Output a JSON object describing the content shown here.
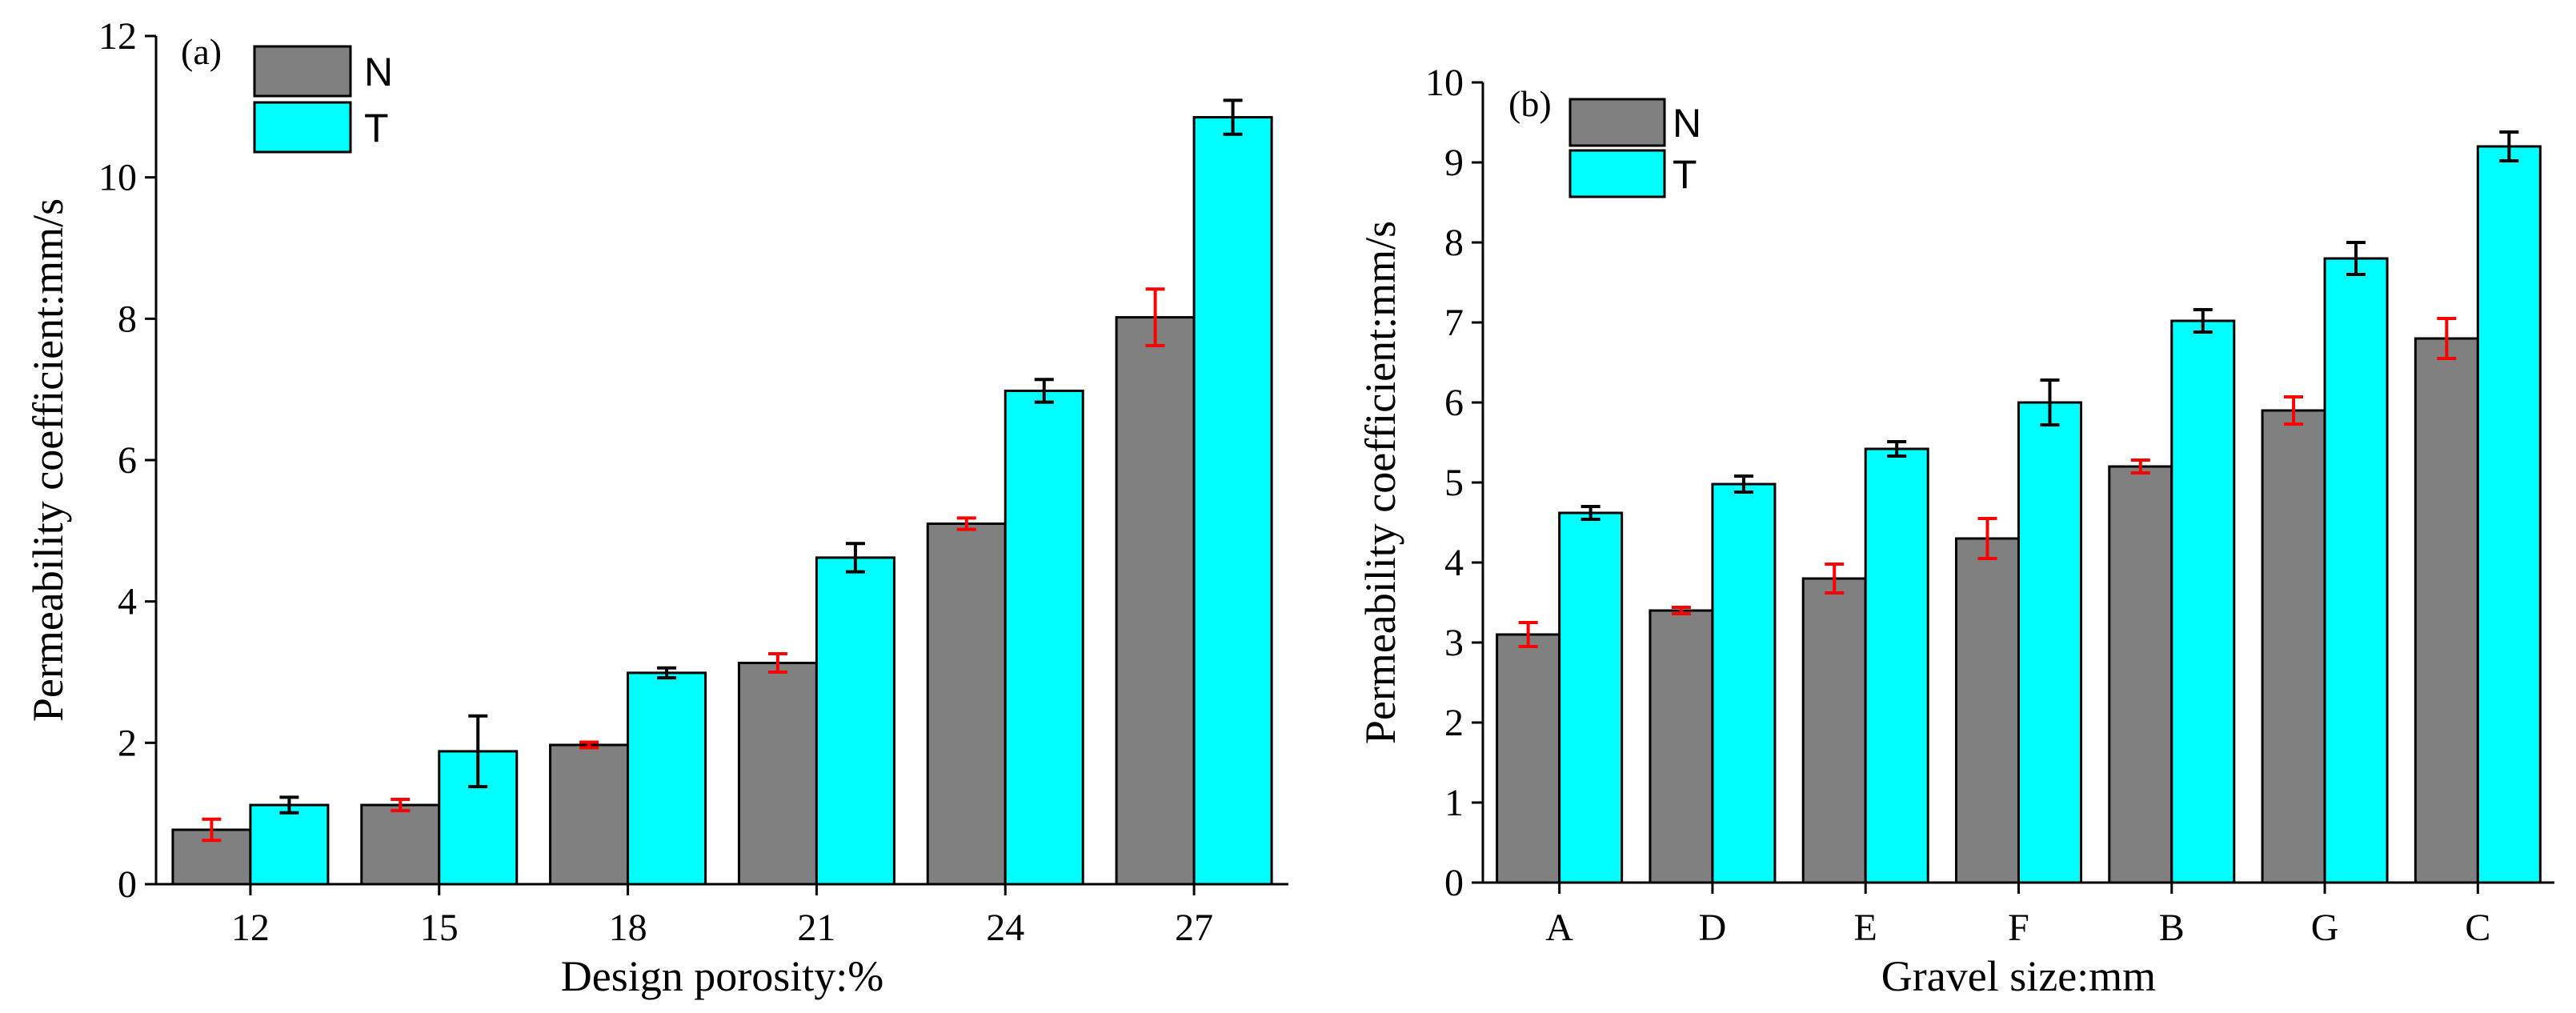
{
  "chart_data": [
    {
      "type": "bar",
      "panel_label": "(a)",
      "title": "",
      "xlabel": "Design porosity:%",
      "ylabel": "Permeability coefficient:mm/s",
      "categories": [
        "12",
        "15",
        "18",
        "21",
        "24",
        "27"
      ],
      "ylim": [
        0,
        12
      ],
      "yticks": [
        0,
        2,
        4,
        6,
        8,
        10,
        12
      ],
      "legend_position": "top-left",
      "grid": false,
      "series": [
        {
          "name": "N",
          "color": "#808080",
          "error_color": "#ff0000",
          "values": [
            0.77,
            1.12,
            1.97,
            3.13,
            5.1,
            8.02
          ],
          "errors": [
            0.15,
            0.08,
            0.04,
            0.13,
            0.08,
            0.4
          ]
        },
        {
          "name": "T",
          "color": "#00ffff",
          "error_color": "#000000",
          "values": [
            1.12,
            1.88,
            2.99,
            4.62,
            6.98,
            10.85
          ],
          "errors": [
            0.11,
            0.5,
            0.07,
            0.2,
            0.16,
            0.24
          ]
        }
      ]
    },
    {
      "type": "bar",
      "panel_label": "(b)",
      "title": "",
      "xlabel": "Gravel size:mm",
      "ylabel": "Permeability coefficient:mm/s",
      "categories": [
        "A",
        "D",
        "E",
        "F",
        "B",
        "G",
        "C"
      ],
      "ylim": [
        0,
        10
      ],
      "yticks": [
        0,
        1,
        2,
        3,
        4,
        5,
        6,
        7,
        8,
        9,
        10
      ],
      "legend_position": "top-left",
      "grid": false,
      "series": [
        {
          "name": "N",
          "color": "#808080",
          "error_color": "#ff0000",
          "values": [
            3.1,
            3.4,
            3.8,
            4.3,
            5.2,
            5.9,
            6.8
          ],
          "errors": [
            0.15,
            0.04,
            0.18,
            0.25,
            0.08,
            0.17,
            0.25
          ]
        },
        {
          "name": "T",
          "color": "#00ffff",
          "error_color": "#000000",
          "values": [
            4.62,
            4.98,
            5.42,
            6.0,
            7.02,
            7.8,
            9.2
          ],
          "errors": [
            0.08,
            0.1,
            0.09,
            0.28,
            0.14,
            0.2,
            0.18
          ]
        }
      ]
    }
  ]
}
